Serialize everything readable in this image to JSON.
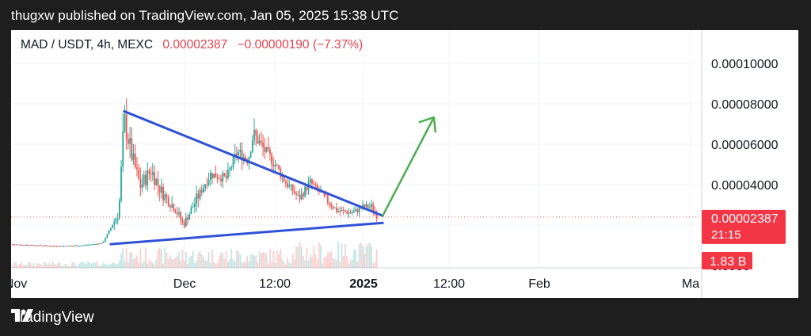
{
  "header": {
    "published": "thugxw published on TradingView.com, Jan 05, 2025 15:38 UTC"
  },
  "legend": {
    "symbol": "MAD / USDT, 4h, MEXC",
    "price": "0.00002387",
    "change": "−0.00000190 (−7.37%)"
  },
  "price_tag": {
    "value": "0.00002387",
    "countdown": "21:15"
  },
  "volume_tag": {
    "value": "1.83 B"
  },
  "footer": {
    "brand": "TradingView"
  },
  "colors": {
    "up": "#26a69a",
    "down": "#ef5350",
    "trendline": "#2f52d6",
    "arrow": "#4caf50",
    "tag": "#f23645"
  },
  "chart_data": {
    "type": "candlestick",
    "yaxis_ticks": [
      "0.00010000",
      "0.00008000",
      "0.00006000",
      "0.00004000",
      "0.0000"
    ],
    "xaxis_ticks": [
      "Nov",
      "Dec",
      "12:00",
      "2025",
      "12:00",
      "Feb",
      "Ma"
    ],
    "close_path": [
      {
        "x": 0,
        "y": 1.04e-05
      },
      {
        "x": 8,
        "y": 1e-05
      },
      {
        "x": 17,
        "y": 9.5e-06
      },
      {
        "x": 26,
        "y": 9.8e-06
      },
      {
        "x": 34,
        "y": 1.1e-05
      },
      {
        "x": 40,
        "y": 2.6e-05
      },
      {
        "x": 42,
        "y": 7.2e-05
      },
      {
        "x": 45,
        "y": 5.3e-05
      },
      {
        "x": 48,
        "y": 3.9e-05
      },
      {
        "x": 52,
        "y": 4.7e-05
      },
      {
        "x": 56,
        "y": 3.6e-05
      },
      {
        "x": 61,
        "y": 2.8e-05
      },
      {
        "x": 64,
        "y": 2e-05
      },
      {
        "x": 69,
        "y": 3.3e-05
      },
      {
        "x": 74,
        "y": 4.5e-05
      },
      {
        "x": 80,
        "y": 4.3e-05
      },
      {
        "x": 84,
        "y": 5.6e-05
      },
      {
        "x": 88,
        "y": 5.2e-05
      },
      {
        "x": 90,
        "y": 6.5e-05
      },
      {
        "x": 94,
        "y": 5.7e-05
      },
      {
        "x": 98,
        "y": 5e-05
      },
      {
        "x": 102,
        "y": 4.1e-05
      },
      {
        "x": 107,
        "y": 3.3e-05
      },
      {
        "x": 111,
        "y": 4.1e-05
      },
      {
        "x": 116,
        "y": 3.4e-05
      },
      {
        "x": 121,
        "y": 2.7e-05
      },
      {
        "x": 127,
        "y": 2.6e-05
      },
      {
        "x": 131,
        "y": 2.9e-05
      },
      {
        "x": 134,
        "y": 2.9e-05
      },
      {
        "x": 136,
        "y": 2.39e-05
      }
    ],
    "annotations": {
      "descending_trendline": [
        {
          "x": 42,
          "y": 7.6e-05
        },
        {
          "x": 138,
          "y": 2.45e-05
        }
      ],
      "ascending_trendline": [
        {
          "x": 37,
          "y": 1.05e-05
        },
        {
          "x": 138,
          "y": 2.1e-05
        }
      ],
      "breakout_arrow": [
        {
          "x": 138,
          "y": 2.45e-05
        },
        {
          "x": 157,
          "y": 7.3e-05
        }
      ]
    },
    "last_price": 2.387e-05
  }
}
